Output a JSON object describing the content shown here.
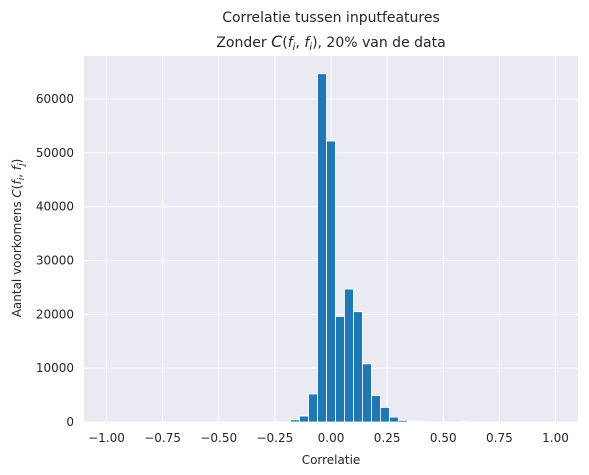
{
  "chart_data": {
    "type": "bar",
    "title_line1": "Correlatie tussen inputfeatures",
    "title_line2": "Zonder C(fi, fi), 20% van de data",
    "xlabel": "Correlatie",
    "ylabel": "Aantal voorkomens C(fi, fj)",
    "xlim": [
      -1.1,
      1.1
    ],
    "ylim": [
      0,
      68000
    ],
    "xticks": [
      -1.0,
      -0.75,
      -0.5,
      -0.25,
      0.0,
      0.25,
      0.5,
      0.75,
      1.0
    ],
    "xtick_labels": [
      "−1.00",
      "−0.75",
      "−0.50",
      "−0.25",
      "0.00",
      "0.25",
      "0.50",
      "0.75",
      "1.00"
    ],
    "yticks": [
      0,
      10000,
      20000,
      30000,
      40000,
      50000,
      60000
    ],
    "ytick_labels": [
      "0",
      "10000",
      "20000",
      "30000",
      "40000",
      "50000",
      "60000"
    ],
    "grid": true,
    "bar_color": "#1f77b4",
    "background_color": "#eaeaf2",
    "bin_width": 0.04,
    "bins": [
      {
        "x0": -0.18,
        "x1": -0.14,
        "value": 400
      },
      {
        "x0": -0.14,
        "x1": -0.1,
        "value": 1100
      },
      {
        "x0": -0.1,
        "x1": -0.06,
        "value": 5200
      },
      {
        "x0": -0.06,
        "x1": -0.02,
        "value": 64700
      },
      {
        "x0": -0.02,
        "x1": 0.02,
        "value": 52200
      },
      {
        "x0": 0.02,
        "x1": 0.06,
        "value": 19600
      },
      {
        "x0": 0.06,
        "x1": 0.1,
        "value": 24700
      },
      {
        "x0": 0.1,
        "x1": 0.14,
        "value": 20500
      },
      {
        "x0": 0.14,
        "x1": 0.18,
        "value": 10800
      },
      {
        "x0": 0.18,
        "x1": 0.22,
        "value": 4900
      },
      {
        "x0": 0.22,
        "x1": 0.26,
        "value": 2700
      },
      {
        "x0": 0.26,
        "x1": 0.3,
        "value": 900
      },
      {
        "x0": 0.3,
        "x1": 0.34,
        "value": 300
      },
      {
        "x0": 0.34,
        "x1": 0.38,
        "value": 150
      },
      {
        "x0": 0.38,
        "x1": 0.42,
        "value": 80
      },
      {
        "x0": 0.42,
        "x1": 0.46,
        "value": 40
      },
      {
        "x0": 0.46,
        "x1": 0.5,
        "value": 20
      },
      {
        "x0": 0.58,
        "x1": 0.62,
        "value": 120
      }
    ]
  }
}
